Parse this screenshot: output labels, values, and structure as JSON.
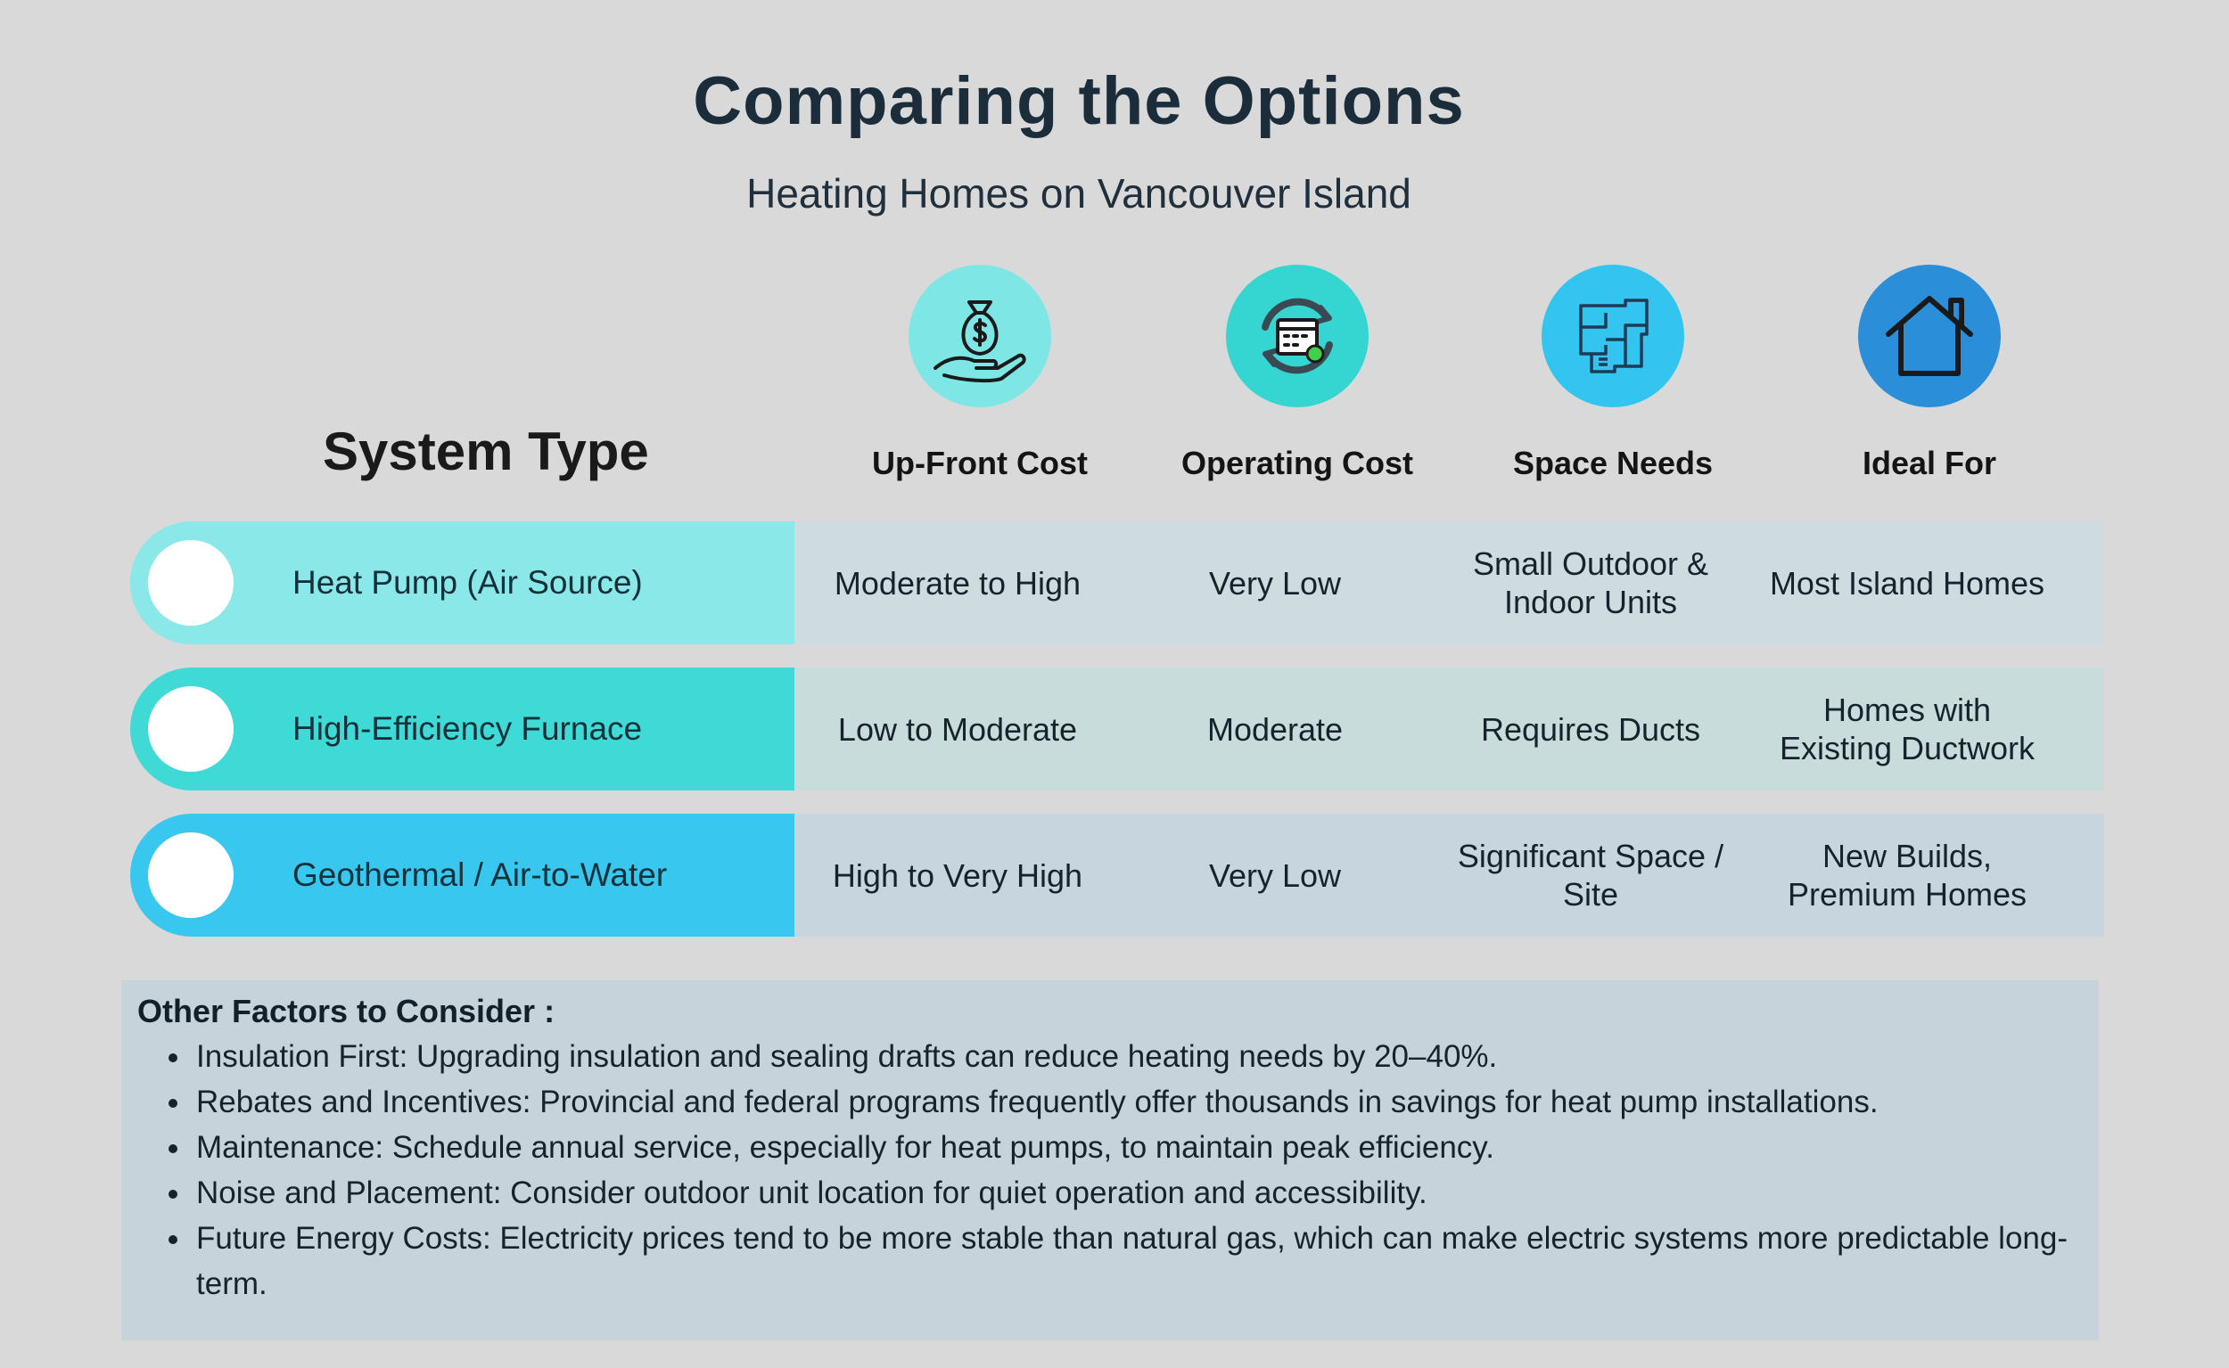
{
  "header": {
    "title": "Comparing the Options",
    "subtitle": "Heating Homes on Vancouver Island"
  },
  "table": {
    "row_header_label": "System Type",
    "columns": [
      {
        "label": "Up-Front Cost",
        "icon": "money-bag-hand-icon",
        "color": "#7fe6e6"
      },
      {
        "label": "Operating Cost",
        "icon": "calendar-cycle-icon",
        "color": "#35d6d2"
      },
      {
        "label": "Space Needs",
        "icon": "floor-plan-icon",
        "color": "#33c5ef"
      },
      {
        "label": "Ideal For",
        "icon": "house-icon",
        "color": "#2a8fd8"
      }
    ],
    "rows": [
      {
        "name": "Heat Pump (Air Source)",
        "pill_color": "#8ae8e8",
        "band_color": "#cfdcdf",
        "cells": [
          "Moderate to High",
          "Very Low",
          "Small Outdoor & Indoor Units",
          "Most Island Homes"
        ]
      },
      {
        "name": "High-Efficiency Furnace",
        "pill_color": "#3fdad6",
        "band_color": "#c9dcdc",
        "cells": [
          "Low to Moderate",
          "Moderate",
          "Requires Ducts",
          "Homes with Existing Ductwork"
        ]
      },
      {
        "name": "Geothermal / Air-to-Water",
        "pill_color": "#38c7ee",
        "band_color": "#c7d6de",
        "cells": [
          "High to Very High",
          "Very Low",
          "Significant Space / Site",
          "New Builds, Premium Homes"
        ]
      }
    ]
  },
  "factors": {
    "title": "Other Factors to Consider :",
    "items": [
      "Insulation First: Upgrading insulation and sealing drafts can reduce heating needs by 20–40%.",
      "Rebates and Incentives: Provincial and federal programs frequently offer thousands in savings for heat pump installations.",
      "Maintenance: Schedule annual service, especially for heat pumps, to maintain peak efficiency.",
      "Noise and Placement: Consider outdoor unit location for quiet operation and accessibility.",
      "Future Energy Costs: Electricity prices tend to be more stable than natural gas, which can make electric systems more predictable long-term."
    ]
  }
}
